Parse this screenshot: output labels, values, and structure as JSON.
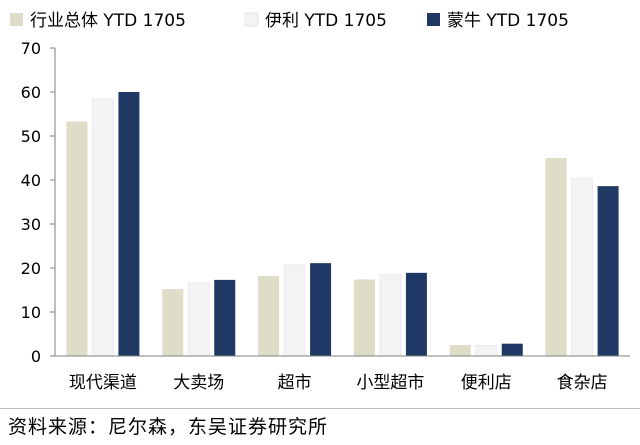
{
  "chart_data": {
    "type": "bar",
    "categories": [
      "现代渠道",
      "大卖场",
      "超市",
      "小型超市",
      "便利店",
      "食杂店"
    ],
    "series": [
      {
        "name": "行业总体 YTD 1705",
        "color": "#deddc7",
        "values": [
          53.3,
          15.2,
          18.2,
          17.4,
          2.5,
          45.0
        ]
      },
      {
        "name": "伊利 YTD 1705",
        "color": "#f3f3f5",
        "values": [
          58.4,
          16.6,
          20.7,
          18.5,
          2.4,
          40.4
        ]
      },
      {
        "name": "蒙牛 YTD 1705",
        "color": "#1f3864",
        "values": [
          60.0,
          17.3,
          21.1,
          18.9,
          2.8,
          38.6
        ]
      }
    ],
    "ylim": [
      0,
      70
    ],
    "yticks": [
      0,
      10,
      20,
      30,
      40,
      50,
      60,
      70
    ],
    "legend_position": "top",
    "grid": false
  },
  "footer": {
    "source": "资料来源：尼尔森，东吴证券研究所"
  }
}
